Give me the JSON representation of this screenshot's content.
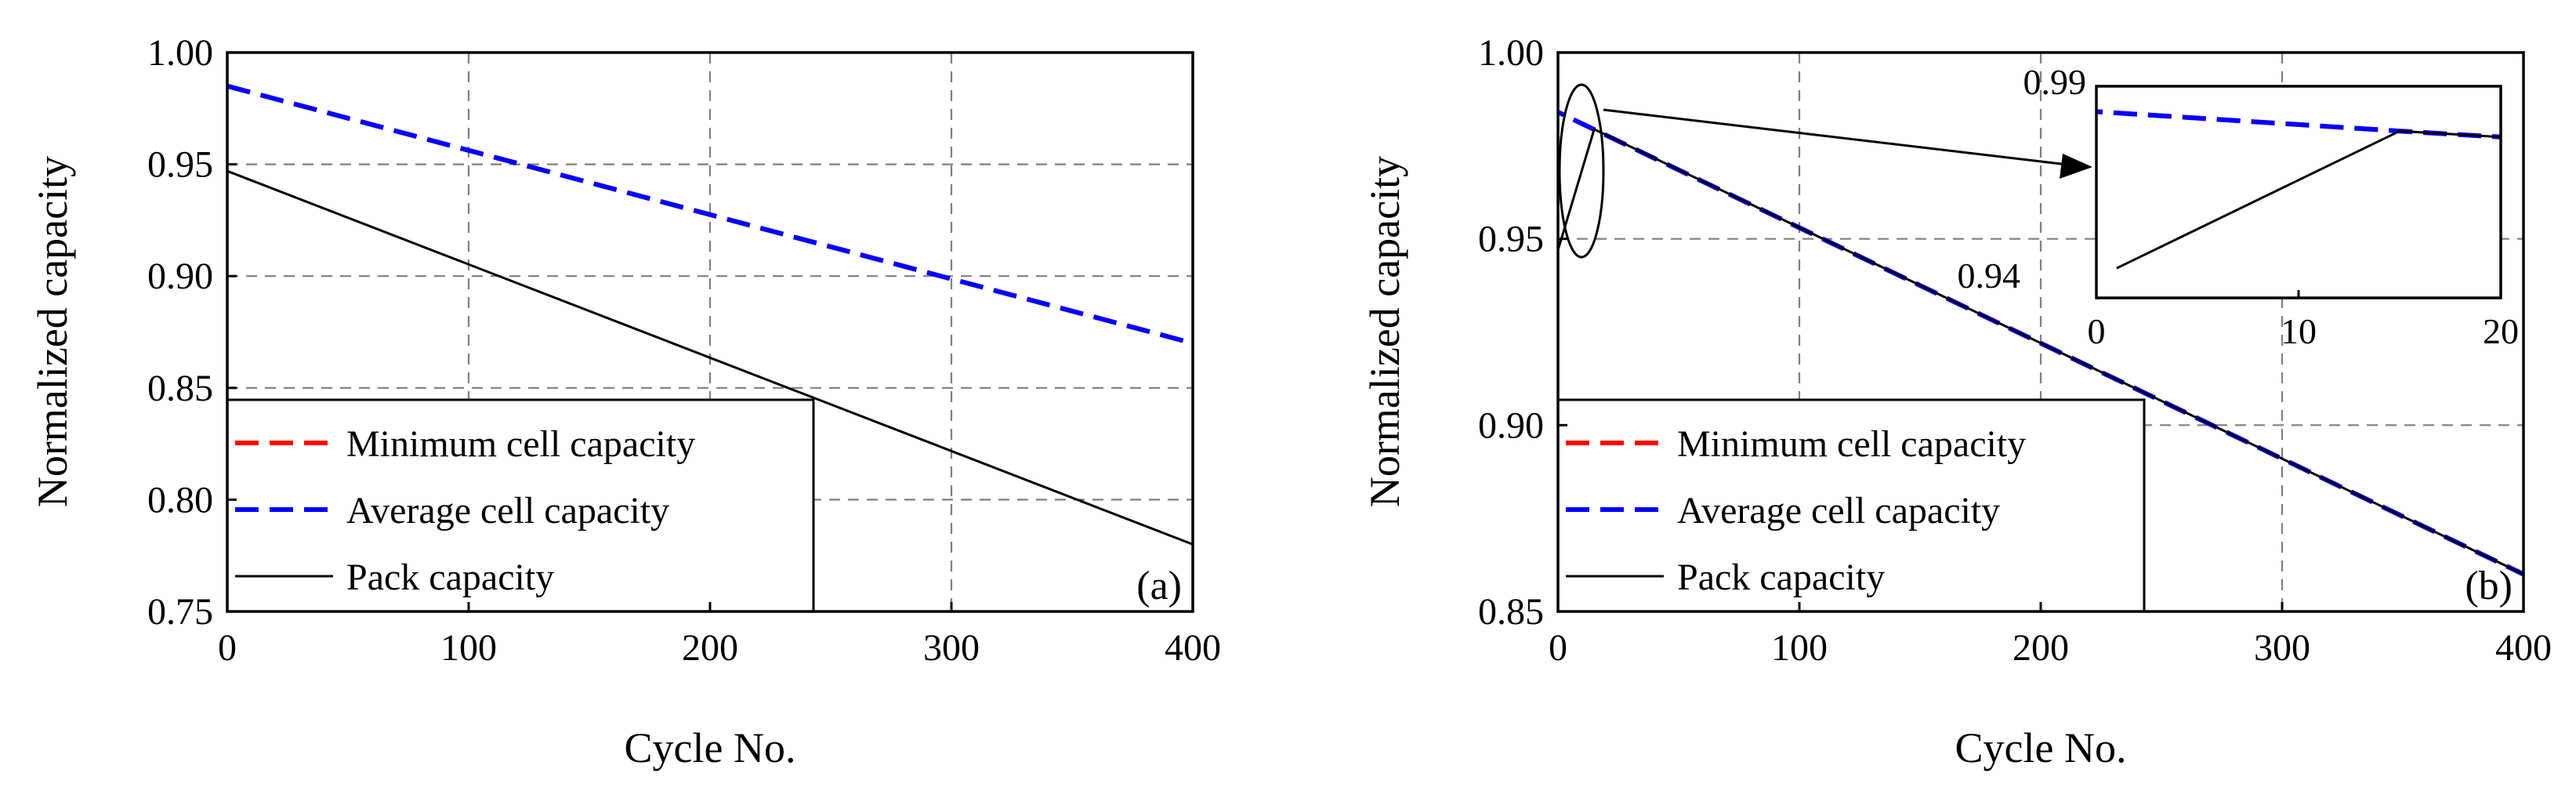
{
  "chart_data": [
    {
      "type": "line",
      "panel_label": "(a)",
      "xlabel": "Cycle No.",
      "ylabel": "Normalized capacity",
      "xlim": [
        0,
        400
      ],
      "ylim": [
        0.75,
        1.0
      ],
      "x_ticks": [
        0,
        100,
        200,
        300,
        400
      ],
      "x_tick_labels": [
        "0",
        "100",
        "200",
        "300",
        "400"
      ],
      "y_ticks": [
        0.75,
        0.8,
        0.85,
        0.9,
        0.95,
        1.0
      ],
      "y_tick_labels": [
        "0.75",
        "0.80",
        "0.85",
        "0.90",
        "0.95",
        "1.00"
      ],
      "grid": true,
      "legend_position": "bottom-left",
      "series": [
        {
          "name": "Minimum cell capacity",
          "color": "#ff0000",
          "style": "dashed",
          "x": [
            0,
            400
          ],
          "y": [
            0.985,
            0.87
          ]
        },
        {
          "name": "Average cell capacity",
          "color": "#0000ff",
          "style": "dashed",
          "x": [
            0,
            400
          ],
          "y": [
            0.985,
            0.87
          ]
        },
        {
          "name": "Pack capacity",
          "color": "#000000",
          "style": "solid",
          "x": [
            0,
            400
          ],
          "y": [
            0.947,
            0.78
          ]
        }
      ]
    },
    {
      "type": "line",
      "panel_label": "(b)",
      "xlabel": "Cycle No.",
      "ylabel": "Normalized capacity",
      "xlim": [
        0,
        400
      ],
      "ylim": [
        0.85,
        1.0
      ],
      "x_ticks": [
        0,
        100,
        200,
        300,
        400
      ],
      "x_tick_labels": [
        "0",
        "100",
        "200",
        "300",
        "400"
      ],
      "y_ticks": [
        0.85,
        0.9,
        0.95,
        1.0
      ],
      "y_tick_labels": [
        "0.85",
        "0.90",
        "0.95",
        "1.00"
      ],
      "grid": true,
      "legend_position": "bottom-left",
      "series": [
        {
          "name": "Minimum cell capacity",
          "color": "#ff0000",
          "style": "dashed",
          "x": [
            0,
            400
          ],
          "y": [
            0.984,
            0.86
          ]
        },
        {
          "name": "Average cell capacity",
          "color": "#0000ff",
          "style": "dashed",
          "x": [
            0,
            400
          ],
          "y": [
            0.984,
            0.86
          ]
        },
        {
          "name": "Pack capacity",
          "color": "#000000",
          "style": "solid",
          "x": [
            0,
            15,
            400
          ],
          "y": [
            0.947,
            0.9794,
            0.86
          ]
        }
      ],
      "inset": {
        "xlim": [
          0,
          20
        ],
        "ylim": [
          0.94,
          0.99
        ],
        "x_ticks": [
          0,
          10,
          20
        ],
        "x_tick_labels": [
          "0",
          "10",
          "20"
        ],
        "y_tick_labels": [
          "0.94",
          "0.99"
        ],
        "series": [
          {
            "name": "Minimum cell capacity",
            "color": "#ff0000",
            "style": "dashed",
            "x": [
              0,
              15,
              20
            ],
            "y": [
              0.984,
              0.9794,
              0.978
            ]
          },
          {
            "name": "Average cell capacity",
            "color": "#0000ff",
            "style": "dashed",
            "x": [
              0,
              15,
              20
            ],
            "y": [
              0.984,
              0.9794,
              0.978
            ]
          },
          {
            "name": "Pack capacity",
            "color": "#000000",
            "style": "solid",
            "x": [
              1,
              15,
              20
            ],
            "y": [
              0.947,
              0.9794,
              0.978
            ]
          }
        ]
      }
    }
  ]
}
